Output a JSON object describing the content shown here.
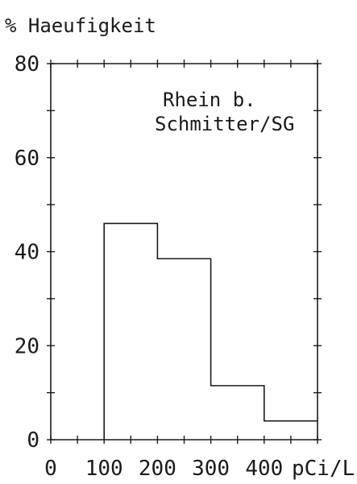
{
  "chart_data": {
    "type": "bar",
    "ylabel": "% Haeufigkeit",
    "xunit": "pCi/L",
    "annotation": [
      "Rhein b.",
      "Schmitter/SG"
    ],
    "xlim": [
      0,
      500
    ],
    "ylim": [
      0,
      80
    ],
    "xticks": [
      "0",
      "100",
      "200",
      "300",
      "400"
    ],
    "yticks": [
      "0",
      "20",
      "40",
      "60",
      "80"
    ],
    "bins": [
      {
        "from": 100,
        "to": 200,
        "value": 46
      },
      {
        "from": 200,
        "to": 300,
        "value": 38.5
      },
      {
        "from": 300,
        "to": 400,
        "value": 11.5
      },
      {
        "from": 400,
        "to": 500,
        "value": 4
      }
    ],
    "grid": false
  }
}
